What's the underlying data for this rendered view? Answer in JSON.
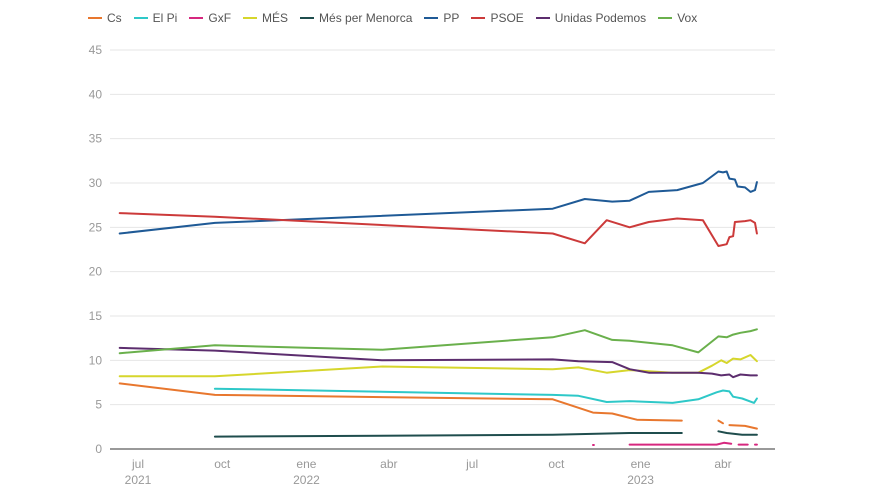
{
  "chart_data": {
    "type": "line",
    "title": "",
    "xlabel": "",
    "ylabel": "",
    "ylim": [
      0,
      45
    ],
    "yticks": [
      0,
      5,
      10,
      15,
      20,
      25,
      30,
      35,
      40,
      45
    ],
    "grid": true,
    "legend_position": "top-left",
    "xticks": [
      {
        "date": "2021-07-01",
        "label": "jul",
        "year": "2021"
      },
      {
        "date": "2021-10-01",
        "label": "oct",
        "year": ""
      },
      {
        "date": "2022-01-01",
        "label": "ene",
        "year": "2022"
      },
      {
        "date": "2022-04-01",
        "label": "abr",
        "year": ""
      },
      {
        "date": "2022-07-01",
        "label": "jul",
        "year": ""
      },
      {
        "date": "2022-10-01",
        "label": "oct",
        "year": ""
      },
      {
        "date": "2023-01-01",
        "label": "ene",
        "year": "2023"
      },
      {
        "date": "2023-04-01",
        "label": "abr",
        "year": ""
      }
    ],
    "series": [
      {
        "name": "Cs",
        "color": "#e8772e",
        "segments": [
          [
            [
              "2021-06-11",
              7.4
            ],
            [
              "2021-09-23",
              6.1
            ],
            [
              "2022-09-27",
              5.6
            ],
            [
              "2022-11-10",
              4.1
            ],
            [
              "2022-12-01",
              4.0
            ],
            [
              "2022-12-28",
              3.3
            ],
            [
              "2023-02-15",
              3.2
            ]
          ],
          [
            [
              "2023-03-27",
              3.2
            ],
            [
              "2023-04-01",
              2.9
            ]
          ],
          [
            [
              "2023-04-08",
              2.7
            ],
            [
              "2023-04-25",
              2.6
            ],
            [
              "2023-05-08",
              2.3
            ]
          ]
        ]
      },
      {
        "name": "El Pi",
        "color": "#2ec8c8",
        "segments": [
          [
            [
              "2021-09-23",
              6.8
            ],
            [
              "2022-09-27",
              6.1
            ],
            [
              "2022-10-25",
              6.0
            ],
            [
              "2022-11-25",
              5.3
            ],
            [
              "2022-12-20",
              5.4
            ],
            [
              "2023-02-05",
              5.2
            ],
            [
              "2023-03-05",
              5.6
            ],
            [
              "2023-03-25",
              6.4
            ],
            [
              "2023-04-01",
              6.6
            ],
            [
              "2023-04-08",
              6.5
            ],
            [
              "2023-04-12",
              5.9
            ],
            [
              "2023-04-22",
              5.7
            ],
            [
              "2023-05-05",
              5.2
            ],
            [
              "2023-05-08",
              5.7
            ]
          ]
        ]
      },
      {
        "name": "GxF",
        "color": "#d6287f",
        "segments": [
          [
            [
              "2022-11-10",
              0.45
            ],
            [
              "2022-11-11",
              0.45
            ]
          ],
          [
            [
              "2022-12-20",
              0.5
            ],
            [
              "2023-03-25",
              0.5
            ],
            [
              "2023-04-02",
              0.7
            ],
            [
              "2023-04-10",
              0.6
            ]
          ],
          [
            [
              "2023-04-18",
              0.5
            ],
            [
              "2023-04-28",
              0.5
            ]
          ],
          [
            [
              "2023-05-06",
              0.5
            ],
            [
              "2023-05-08",
              0.5
            ]
          ]
        ]
      },
      {
        "name": "MÉS",
        "color": "#d6d62c",
        "segments": [
          [
            [
              "2021-06-11",
              8.2
            ],
            [
              "2021-09-23",
              8.2
            ],
            [
              "2022-03-25",
              9.3
            ],
            [
              "2022-09-27",
              9.0
            ],
            [
              "2022-10-25",
              9.2
            ],
            [
              "2022-11-25",
              8.6
            ],
            [
              "2022-12-20",
              8.9
            ],
            [
              "2023-02-05",
              8.6
            ],
            [
              "2023-03-05",
              8.6
            ],
            [
              "2023-03-20",
              9.4
            ],
            [
              "2023-03-30",
              10.0
            ],
            [
              "2023-04-05",
              9.7
            ],
            [
              "2023-04-12",
              10.2
            ],
            [
              "2023-04-20",
              10.1
            ],
            [
              "2023-05-01",
              10.6
            ],
            [
              "2023-05-08",
              9.9
            ]
          ]
        ]
      },
      {
        "name": "Més per Menorca",
        "color": "#1f4d4d",
        "segments": [
          [
            [
              "2021-09-23",
              1.4
            ],
            [
              "2022-09-27",
              1.6
            ],
            [
              "2022-12-20",
              1.8
            ],
            [
              "2023-02-15",
              1.8
            ]
          ],
          [
            [
              "2023-03-27",
              2.0
            ],
            [
              "2023-04-05",
              1.8
            ],
            [
              "2023-04-22",
              1.6
            ],
            [
              "2023-05-08",
              1.6
            ]
          ]
        ]
      },
      {
        "name": "PP",
        "color": "#1f5a96",
        "segments": [
          [
            [
              "2021-06-11",
              24.3
            ],
            [
              "2021-09-23",
              25.5
            ],
            [
              "2022-09-27",
              27.1
            ],
            [
              "2022-11-01",
              28.2
            ],
            [
              "2022-12-01",
              27.9
            ],
            [
              "2022-12-20",
              28.0
            ],
            [
              "2023-01-10",
              29.0
            ],
            [
              "2023-02-10",
              29.2
            ],
            [
              "2023-03-10",
              30.0
            ],
            [
              "2023-03-27",
              31.3
            ],
            [
              "2023-04-01",
              31.2
            ],
            [
              "2023-04-05",
              31.3
            ],
            [
              "2023-04-08",
              30.5
            ],
            [
              "2023-04-14",
              30.4
            ],
            [
              "2023-04-17",
              29.6
            ],
            [
              "2023-04-25",
              29.5
            ],
            [
              "2023-05-01",
              29.0
            ],
            [
              "2023-05-06",
              29.2
            ],
            [
              "2023-05-08",
              30.1
            ]
          ]
        ]
      },
      {
        "name": "PSOE",
        "color": "#cc3a3a",
        "segments": [
          [
            [
              "2021-06-11",
              26.6
            ],
            [
              "2021-09-23",
              26.2
            ],
            [
              "2022-09-27",
              24.3
            ],
            [
              "2022-11-01",
              23.2
            ],
            [
              "2022-11-25",
              25.8
            ],
            [
              "2022-12-20",
              25.0
            ],
            [
              "2023-01-10",
              25.6
            ],
            [
              "2023-02-10",
              26.0
            ],
            [
              "2023-03-10",
              25.8
            ],
            [
              "2023-03-27",
              22.9
            ],
            [
              "2023-04-05",
              23.1
            ],
            [
              "2023-04-08",
              23.9
            ],
            [
              "2023-04-12",
              24.0
            ],
            [
              "2023-04-14",
              25.6
            ],
            [
              "2023-04-25",
              25.7
            ],
            [
              "2023-05-01",
              25.8
            ],
            [
              "2023-05-06",
              25.5
            ],
            [
              "2023-05-08",
              24.3
            ]
          ]
        ]
      },
      {
        "name": "Unidas Podemos",
        "color": "#5c2d6e",
        "segments": [
          [
            [
              "2021-06-11",
              11.4
            ],
            [
              "2021-09-23",
              11.1
            ],
            [
              "2022-03-25",
              10.0
            ],
            [
              "2022-09-27",
              10.1
            ],
            [
              "2022-10-25",
              9.9
            ],
            [
              "2022-12-01",
              9.8
            ],
            [
              "2022-12-20",
              9.0
            ],
            [
              "2023-01-10",
              8.6
            ],
            [
              "2023-03-05",
              8.6
            ],
            [
              "2023-03-20",
              8.5
            ],
            [
              "2023-03-30",
              8.3
            ],
            [
              "2023-04-08",
              8.4
            ],
            [
              "2023-04-12",
              8.1
            ],
            [
              "2023-04-20",
              8.4
            ],
            [
              "2023-05-01",
              8.3
            ],
            [
              "2023-05-08",
              8.3
            ]
          ]
        ]
      },
      {
        "name": "Vox",
        "color": "#6ab04c",
        "segments": [
          [
            [
              "2021-06-11",
              10.8
            ],
            [
              "2021-09-23",
              11.7
            ],
            [
              "2022-03-25",
              11.2
            ],
            [
              "2022-09-27",
              12.6
            ],
            [
              "2022-11-01",
              13.4
            ],
            [
              "2022-12-01",
              12.3
            ],
            [
              "2022-12-20",
              12.2
            ],
            [
              "2023-02-05",
              11.7
            ],
            [
              "2023-03-05",
              10.9
            ],
            [
              "2023-03-27",
              12.7
            ],
            [
              "2023-04-05",
              12.6
            ],
            [
              "2023-04-12",
              12.9
            ],
            [
              "2023-04-20",
              13.1
            ],
            [
              "2023-05-01",
              13.3
            ],
            [
              "2023-05-08",
              13.5
            ]
          ]
        ]
      }
    ]
  }
}
